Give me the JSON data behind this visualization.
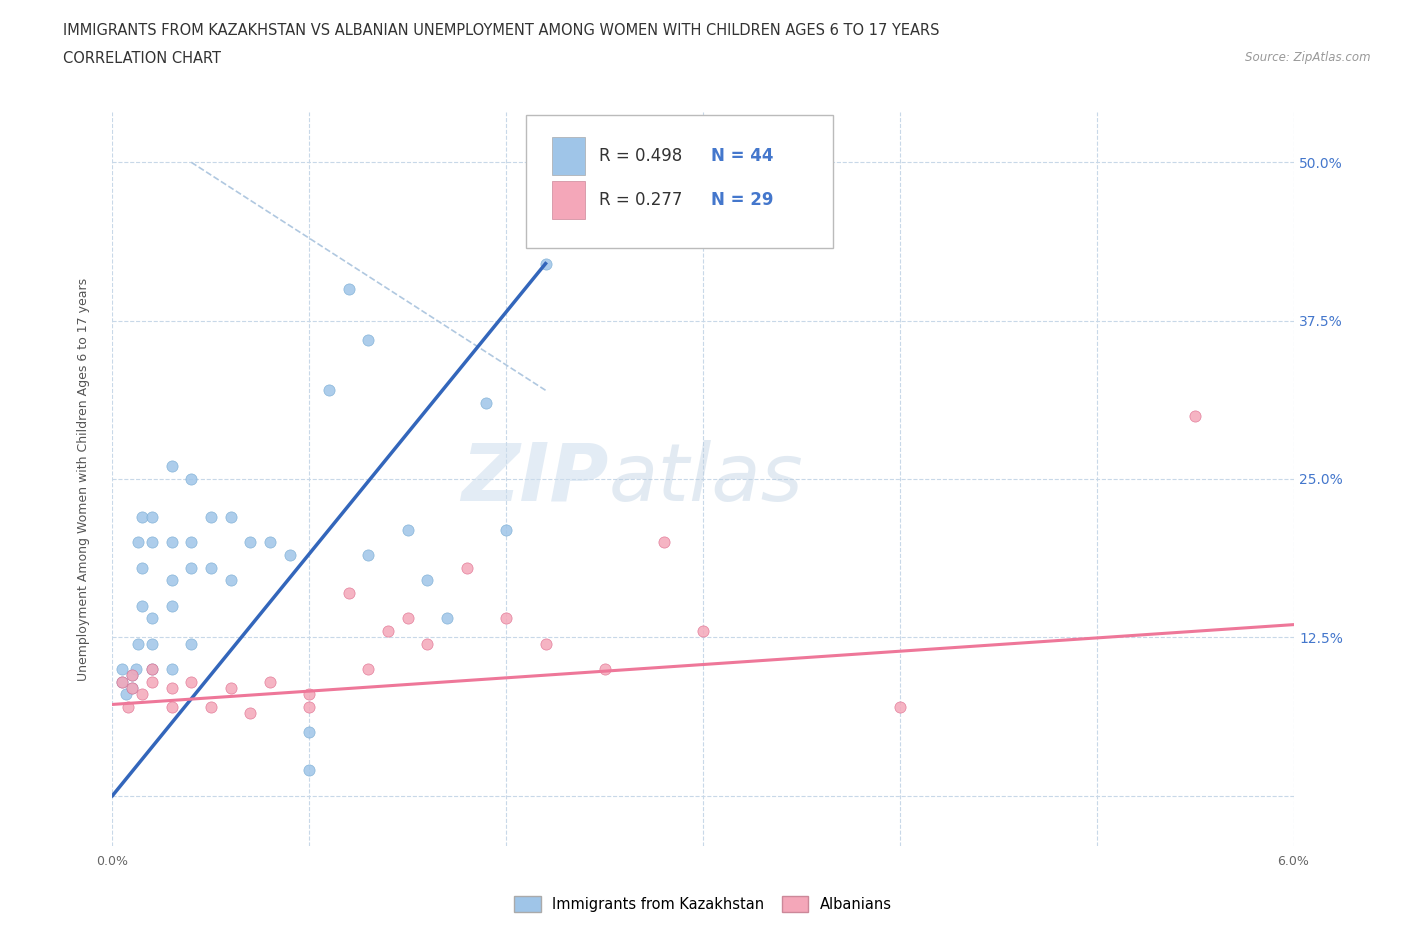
{
  "title_line1": "IMMIGRANTS FROM KAZAKHSTAN VS ALBANIAN UNEMPLOYMENT AMONG WOMEN WITH CHILDREN AGES 6 TO 17 YEARS",
  "title_line2": "CORRELATION CHART",
  "source_text": "Source: ZipAtlas.com",
  "ylabel": "Unemployment Among Women with Children Ages 6 to 17 years",
  "xlim": [
    0.0,
    0.06
  ],
  "ylim": [
    -0.04,
    0.54
  ],
  "xticks": [
    0.0,
    0.01,
    0.02,
    0.03,
    0.04,
    0.05,
    0.06
  ],
  "xtick_labels": [
    "0.0%",
    "",
    "",
    "",
    "",
    "",
    "6.0%"
  ],
  "yticks": [
    0.0,
    0.125,
    0.25,
    0.375,
    0.5
  ],
  "ytick_right_labels": [
    "",
    "12.5%",
    "25.0%",
    "37.5%",
    "50.0%"
  ],
  "grid_color": "#c8d8e8",
  "grid_style": "--",
  "watermark_zip": "ZIP",
  "watermark_atlas": "atlas",
  "kazakhstan_color": "#9fc5e8",
  "kazakhstan_edge": "#7aadd4",
  "albanian_color": "#f4a7b9",
  "albanian_edge": "#e07090",
  "kazakhstan_line_color": "#3366bb",
  "albanian_line_color": "#ee7799",
  "dashed_line_color": "#b0c8e0",
  "legend_R1": "R = 0.498",
  "legend_N1": "N = 44",
  "legend_R2": "R = 0.277",
  "legend_N2": "N = 29",
  "kaz_line_x0": 0.0,
  "kaz_line_y0": 0.0,
  "kaz_line_x1": 0.022,
  "kaz_line_y1": 0.42,
  "alb_line_x0": 0.0,
  "alb_line_y0": 0.072,
  "alb_line_x1": 0.06,
  "alb_line_y1": 0.135,
  "kazakhstan_x": [
    0.0005,
    0.0005,
    0.0007,
    0.001,
    0.001,
    0.0012,
    0.0013,
    0.0013,
    0.0015,
    0.0015,
    0.0015,
    0.002,
    0.002,
    0.002,
    0.002,
    0.002,
    0.003,
    0.003,
    0.003,
    0.003,
    0.003,
    0.004,
    0.004,
    0.004,
    0.004,
    0.005,
    0.005,
    0.006,
    0.006,
    0.007,
    0.008,
    0.009,
    0.01,
    0.01,
    0.011,
    0.012,
    0.013,
    0.013,
    0.015,
    0.016,
    0.017,
    0.019,
    0.02,
    0.022
  ],
  "kazakhstan_y": [
    0.09,
    0.1,
    0.08,
    0.085,
    0.095,
    0.1,
    0.12,
    0.2,
    0.18,
    0.15,
    0.22,
    0.1,
    0.12,
    0.14,
    0.2,
    0.22,
    0.1,
    0.15,
    0.17,
    0.2,
    0.26,
    0.12,
    0.18,
    0.2,
    0.25,
    0.18,
    0.22,
    0.17,
    0.22,
    0.2,
    0.2,
    0.19,
    0.02,
    0.05,
    0.32,
    0.4,
    0.36,
    0.19,
    0.21,
    0.17,
    0.14,
    0.31,
    0.21,
    0.42
  ],
  "albanian_x": [
    0.0005,
    0.0008,
    0.001,
    0.001,
    0.0015,
    0.002,
    0.002,
    0.003,
    0.003,
    0.004,
    0.005,
    0.006,
    0.007,
    0.008,
    0.01,
    0.01,
    0.012,
    0.013,
    0.014,
    0.015,
    0.016,
    0.018,
    0.02,
    0.022,
    0.025,
    0.028,
    0.03,
    0.04,
    0.055
  ],
  "albanian_y": [
    0.09,
    0.07,
    0.085,
    0.095,
    0.08,
    0.09,
    0.1,
    0.085,
    0.07,
    0.09,
    0.07,
    0.085,
    0.065,
    0.09,
    0.08,
    0.07,
    0.16,
    0.1,
    0.13,
    0.14,
    0.12,
    0.18,
    0.14,
    0.12,
    0.1,
    0.2,
    0.13,
    0.07,
    0.3
  ],
  "background_color": "#ffffff",
  "title_fontsize": 11,
  "axis_label_fontsize": 9,
  "tick_fontsize": 9,
  "dot_size": 65
}
